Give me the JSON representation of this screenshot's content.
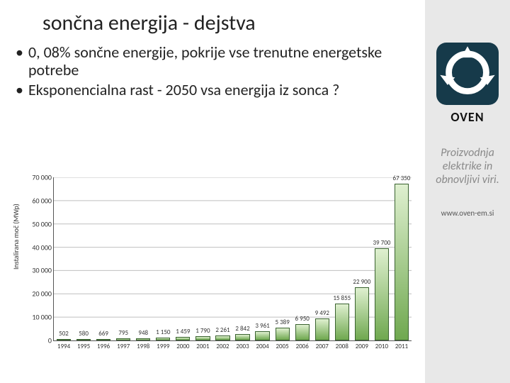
{
  "title": "sončna energija - dejstva",
  "bullets": [
    "0, 08% sončne energije, pokrije vse trenutne energetske potrebe",
    "Eksponencialna rast  - 2050 vsa energija iz sonca ?"
  ],
  "sidebar": {
    "brand": "OVEN",
    "tagline": "Proizvodnja elektrike in obnovljivi viri.",
    "url": "www.oven-em.si",
    "logo_bg": "#163a4a",
    "logo_fg": "#ffffff"
  },
  "chart": {
    "type": "bar",
    "ylabel": "Instalirana moč (MWp)",
    "ylim": [
      0,
      70000
    ],
    "ytick_step": 10000,
    "yticks": [
      "0",
      "10 000",
      "20 000",
      "30 000",
      "40 000",
      "50 000",
      "60 000",
      "70 000"
    ],
    "categories": [
      "1994",
      "1995",
      "1996",
      "1997",
      "1998",
      "1999",
      "2000",
      "2001",
      "2002",
      "2003",
      "2004",
      "2005",
      "2006",
      "2007",
      "2008",
      "2009",
      "2010",
      "2011"
    ],
    "values": [
      502,
      580,
      669,
      795,
      948,
      1150,
      1459,
      1790,
      2261,
      2842,
      3961,
      5389,
      6950,
      9492,
      15855,
      22900,
      39700,
      67350
    ],
    "value_labels": [
      "502",
      "580",
      "669",
      "795",
      "948",
      "1 150",
      "1 459",
      "1 790",
      "2 261",
      "2 842",
      "3 961",
      "5 389",
      "6 950",
      "9 492",
      "15 855",
      "22 900",
      "39 700",
      "67 350"
    ],
    "gradient_top": "#dff0d0",
    "gradient_bottom": "#6fa84f",
    "border_color": "#39622f",
    "grid_color": "#bfbfbf",
    "background_color": "#ffffff",
    "axis_fontsize": 10,
    "datalabel_fontsize": 9
  }
}
